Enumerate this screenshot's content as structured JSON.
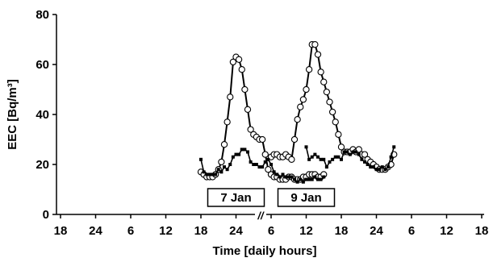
{
  "chart_data": {
    "type": "line",
    "xlabel": "Time [daily hours]",
    "ylabel": "EEC [Bq/m³]",
    "ylim": [
      0,
      80
    ],
    "y_ticks": [
      "0",
      "20",
      "40",
      "60",
      "80"
    ],
    "x_tick_labels": [
      "18",
      "24",
      "6",
      "12",
      "18",
      "24",
      "6",
      "12",
      "18",
      "24",
      "6",
      "12",
      "18"
    ],
    "axis_break": "//",
    "grid": false,
    "annotations": [
      "7 Jan",
      "9 Jan"
    ],
    "series": [
      {
        "marker": "open-circle",
        "segments": [
          {
            "annotation": "7 Jan",
            "x": [
              6.0,
              6.5,
              7.0,
              7.5,
              8.0,
              8.5,
              9.0,
              9.5,
              10.0,
              10.5,
              11.0,
              11.5,
              12.0,
              12.5,
              13.0,
              13.5,
              14.0,
              14.5,
              15.0,
              15.5,
              16.0,
              16.5,
              17.0,
              17.5,
              18.0,
              18.5,
              19.0,
              19.5,
              20.0,
              20.5,
              21.0,
              21.5,
              22.0,
              22.5,
              23.0,
              23.5,
              24.0,
              24.5,
              25.0,
              25.5,
              26.0,
              26.5,
              27.0
            ],
            "values": [
              17,
              16,
              15,
              15,
              15,
              16,
              18,
              21,
              28,
              37,
              47,
              61,
              63,
              62,
              58,
              50,
              42,
              34,
              32,
              31,
              30,
              30,
              24,
              18,
              16,
              15,
              15,
              14,
              14,
              14,
              15,
              15,
              14,
              14,
              14,
              15,
              15,
              16,
              16,
              16,
              15,
              15,
              16
            ]
          },
          {
            "annotation": "9 Jan",
            "x": [
              6.0,
              6.5,
              7.0,
              7.5,
              8.0,
              8.5,
              9.0,
              9.5,
              10.0,
              10.5,
              11.0,
              11.5,
              12.0,
              12.5,
              13.0,
              13.5,
              14.0,
              14.5,
              15.0,
              15.5,
              16.0,
              16.5,
              17.0,
              17.5,
              18.0,
              18.5,
              19.0,
              19.5,
              20.0,
              20.5,
              21.0,
              21.5,
              22.0,
              22.5,
              23.0,
              23.5,
              24.0,
              24.5,
              25.0,
              25.5,
              26.0,
              26.5,
              27.0
            ],
            "values": [
              23,
              24,
              24,
              23,
              23,
              24,
              23,
              22,
              30,
              38,
              43,
              46,
              50,
              58,
              68,
              68,
              64,
              57,
              53,
              49,
              45,
              41,
              37,
              32,
              27,
              25,
              25,
              25,
              26,
              25,
              26,
              24,
              24,
              22,
              21,
              20,
              19,
              18,
              18,
              18,
              19,
              20,
              24
            ]
          }
        ]
      },
      {
        "marker": "filled-square",
        "segments": [
          {
            "annotation": "7 Jan",
            "x": [
              6.0,
              6.5,
              7.0,
              7.5,
              8.0,
              8.5,
              9.0,
              9.5,
              10.0,
              10.5,
              11.0,
              11.5,
              12.0,
              12.5,
              13.0,
              13.5,
              14.0,
              14.5,
              15.0,
              15.5,
              16.0,
              16.5,
              17.0,
              17.5,
              18.0,
              18.5,
              19.0,
              19.5,
              20.0,
              20.5,
              21.0,
              21.5,
              22.0,
              22.5,
              23.0,
              23.5,
              24.0,
              24.5,
              25.0,
              25.5,
              26.0,
              26.5,
              27.0
            ],
            "values": [
              22,
              17,
              16,
              16,
              16,
              16,
              18,
              17,
              19,
              18,
              20,
              23,
              24,
              24,
              26,
              26,
              25,
              21,
              20,
              20,
              19,
              19,
              21,
              22,
              20,
              17,
              16,
              15,
              16,
              15,
              15,
              15,
              14,
              13,
              14,
              13,
              14,
              14,
              14,
              15,
              14,
              14,
              15
            ]
          },
          {
            "annotation": "9 Jan",
            "x": [
              12.0,
              12.5,
              13.0,
              13.5,
              14.0,
              14.5,
              15.0,
              15.5,
              16.0,
              16.5,
              17.0,
              17.5,
              18.0,
              18.5,
              19.0,
              19.5,
              20.0,
              20.5,
              21.0,
              21.5,
              22.0,
              22.5,
              23.0,
              23.5,
              24.0,
              24.5,
              25.0,
              25.5,
              26.0,
              26.5,
              27.0
            ],
            "values": [
              27,
              22,
              23,
              24,
              23,
              22,
              22,
              19,
              21,
              22,
              23,
              23,
              22,
              25,
              25,
              24,
              25,
              25,
              24,
              22,
              21,
              20,
              19,
              19,
              18,
              18,
              19,
              18,
              19,
              23,
              27
            ]
          }
        ]
      }
    ]
  }
}
